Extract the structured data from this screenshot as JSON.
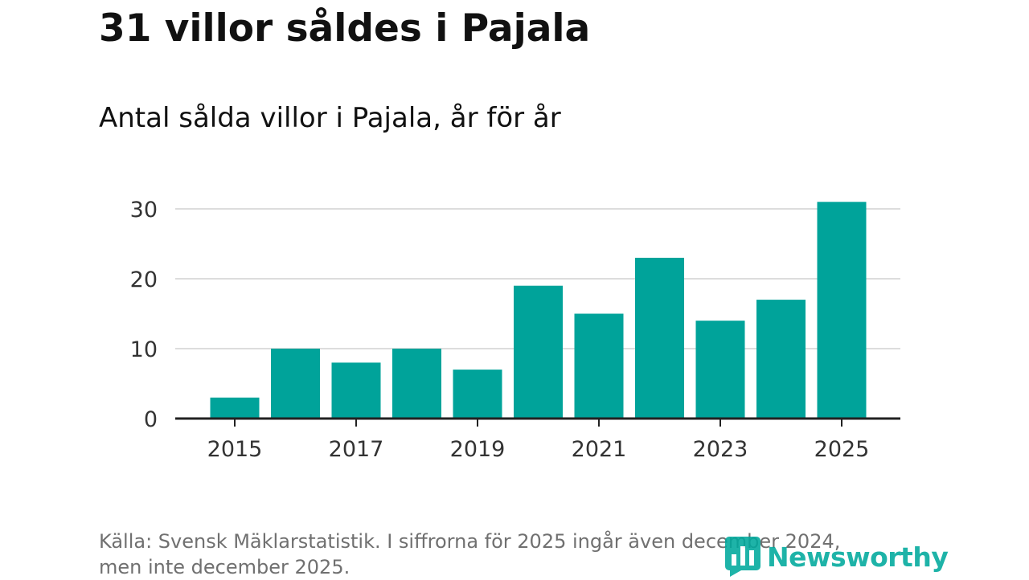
{
  "header": {
    "title": "31 villor såldes i Pajala",
    "subtitle": "Antal sålda villor i Pajala, år för år"
  },
  "footer": {
    "source_line1": "Källa: Svensk Mäklarstatistik. I siffrorna för 2025 ingår även december 2024,",
    "source_line2": "men inte december 2025.",
    "brand": "Newsworthy"
  },
  "colors": {
    "bar": "#00a39a",
    "brand": "#00a99d",
    "grid": "#dddddd",
    "axis": "#222222"
  },
  "icons": {
    "brand_logo": "bar-chart-logo-icon"
  },
  "chart_data": {
    "type": "bar",
    "title": "Antal sålda villor i Pajala, år för år",
    "xlabel": "",
    "ylabel": "",
    "categories": [
      "2015",
      "2016",
      "2017",
      "2018",
      "2019",
      "2020",
      "2021",
      "2022",
      "2023",
      "2024",
      "2025"
    ],
    "values": [
      3,
      10,
      8,
      10,
      7,
      19,
      15,
      23,
      14,
      17,
      31
    ],
    "x_tick_labels": [
      "2015",
      "2017",
      "2019",
      "2021",
      "2023",
      "2025"
    ],
    "y_ticks": [
      0,
      10,
      20,
      30
    ],
    "y_tick_labels": [
      "0",
      "10",
      "20",
      "30"
    ],
    "ylim": [
      0,
      32
    ],
    "grid": true
  }
}
